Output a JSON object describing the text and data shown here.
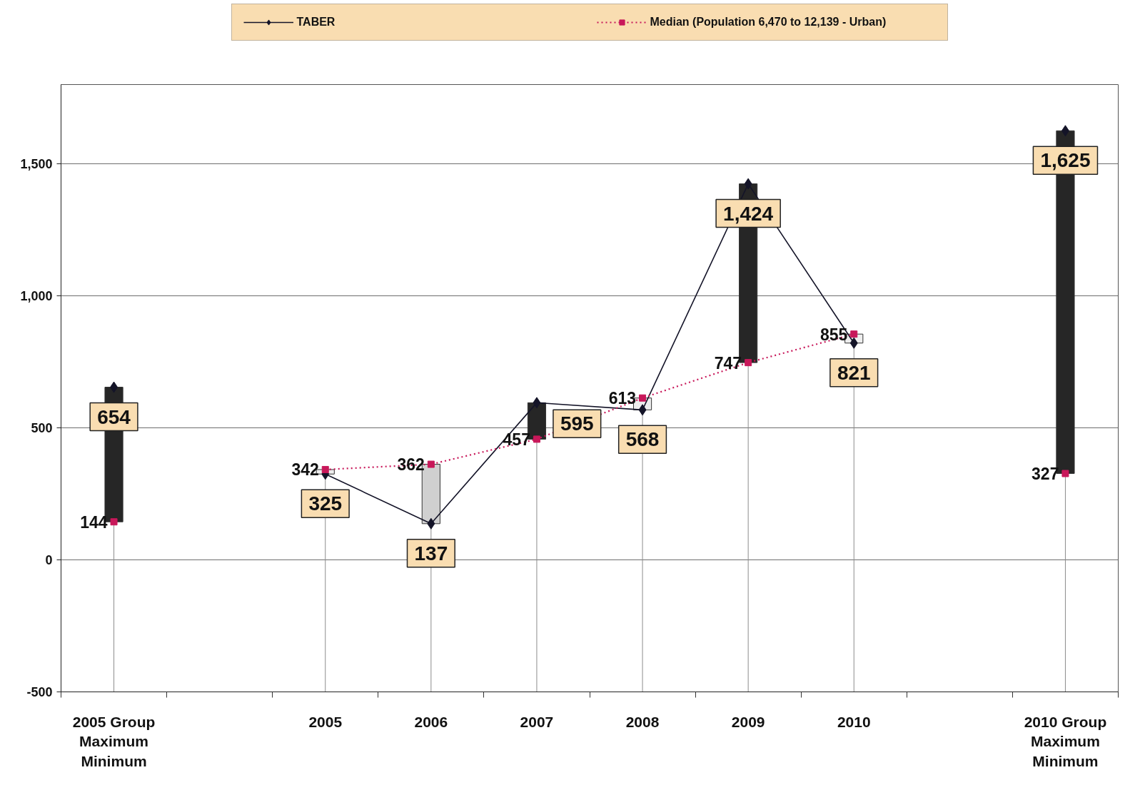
{
  "chart_data": {
    "type": "line",
    "categories": [
      "2005 Group\nMaximum\nMinimum",
      null,
      "2005",
      "2006",
      "2007",
      "2008",
      "2009",
      "2010",
      null,
      "2010 Group\nMaximum\nMinimum"
    ],
    "series": [
      {
        "name": "TABER",
        "color": "#141428",
        "marker": "diamond",
        "line_style": "solid",
        "values": [
          654,
          null,
          325,
          137,
          595,
          568,
          1424,
          821,
          null,
          1625
        ],
        "value_labels": [
          "654",
          null,
          "325",
          "137",
          "595",
          "568",
          "1,424",
          "821",
          null,
          "1,625"
        ]
      },
      {
        "name": "Median (Population 6,470 to 12,139 - Urban)",
        "color": "#c8185a",
        "marker": "square",
        "line_style": "dotted",
        "values": [
          144,
          null,
          342,
          362,
          457,
          613,
          747,
          855,
          null,
          327
        ],
        "value_labels": [
          "144",
          null,
          "342",
          "362",
          "457",
          "613",
          "747",
          "855",
          null,
          "327"
        ]
      },
      {
        "type": "bar",
        "base": [
          144,
          null,
          342,
          362,
          457,
          613,
          747,
          855,
          null,
          327
        ],
        "values": [
          510,
          null,
          -17,
          -225,
          138,
          -45,
          677,
          -34,
          null,
          1298
        ],
        "colors": [
          "#262626",
          null,
          "#eeeeee",
          "#d0d0d0",
          "#262626",
          "#eeeeee",
          "#262626",
          "#eeeeee",
          null,
          "#262626"
        ]
      }
    ],
    "ylim": [
      -500,
      1800
    ],
    "yticks": [
      -500,
      0,
      500,
      {
        "value": 1000,
        "label": "1,000"
      },
      {
        "value": 1500,
        "label": "1,500"
      }
    ],
    "grid": "y",
    "legend": "top"
  }
}
